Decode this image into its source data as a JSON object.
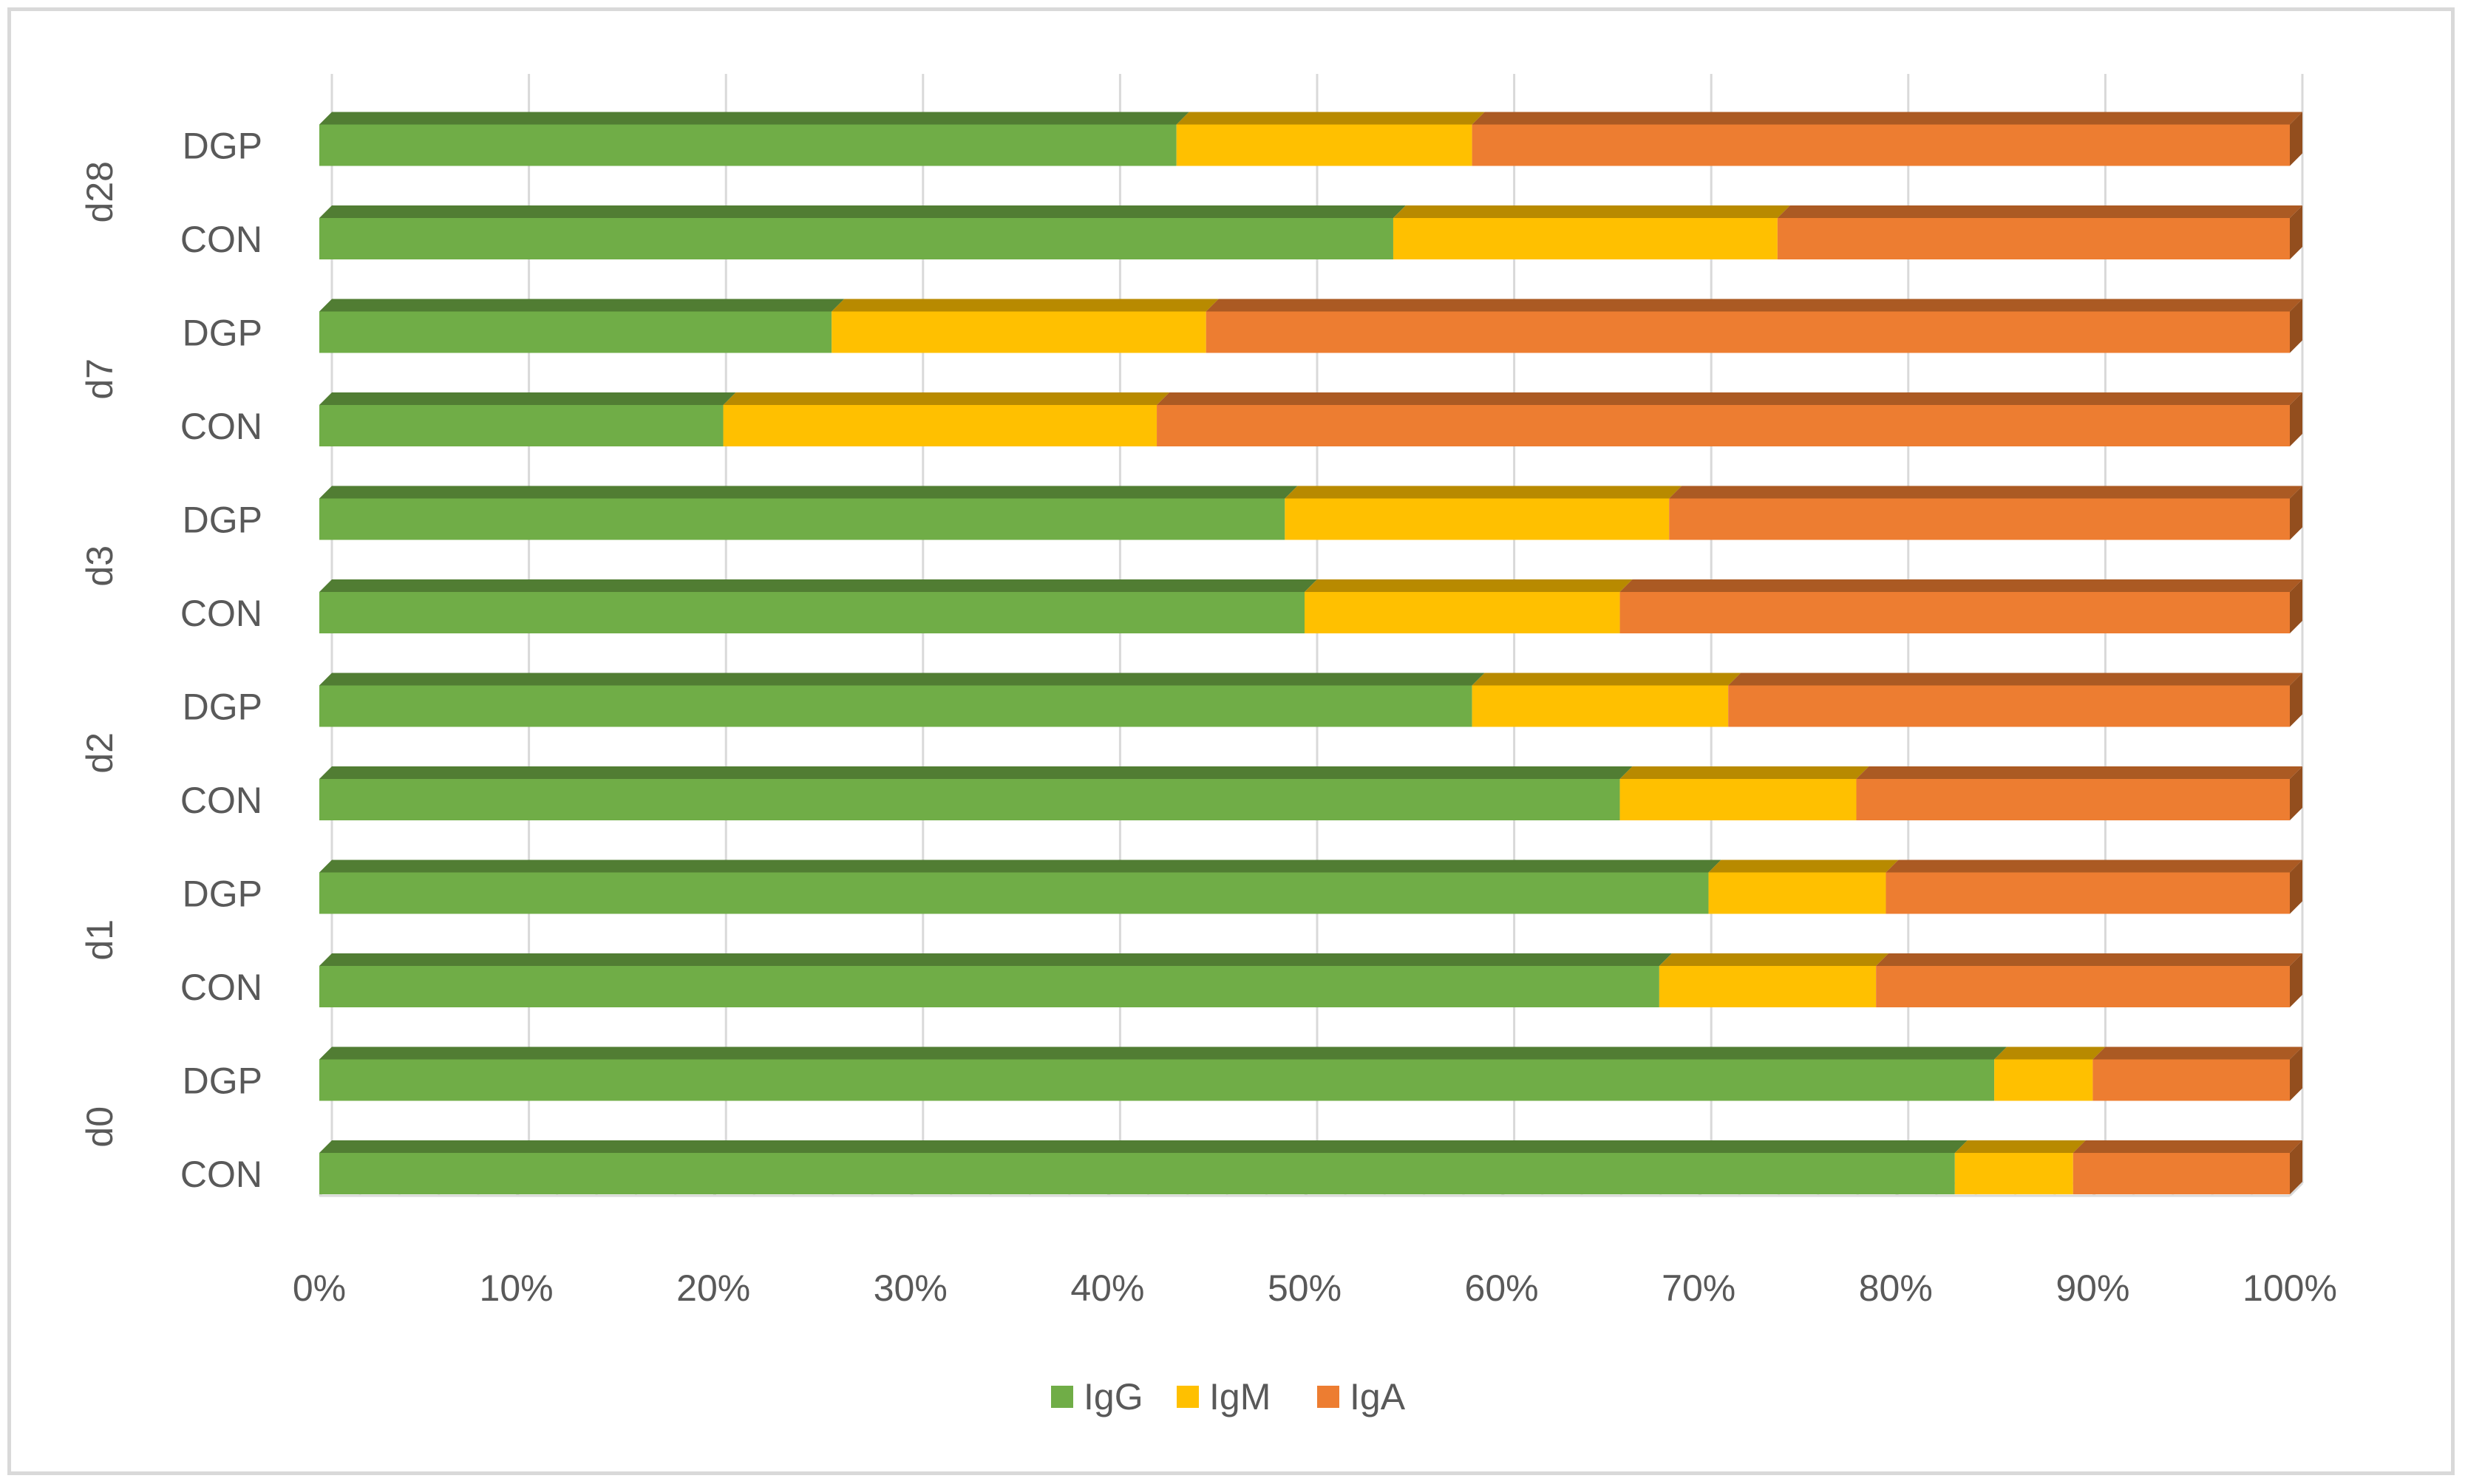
{
  "chart_data": {
    "type": "bar",
    "orientation": "horizontal",
    "stacked": "percent",
    "title": "",
    "xlabel": "",
    "ylabel": "",
    "xlim": [
      0,
      100
    ],
    "x_ticks": [
      "0%",
      "10%",
      "20%",
      "30%",
      "40%",
      "50%",
      "60%",
      "70%",
      "80%",
      "90%",
      "100%"
    ],
    "groups": [
      "d0",
      "d1",
      "d2",
      "d3",
      "d7",
      "d28"
    ],
    "categories": [
      "CON",
      "DGP",
      "CON",
      "DGP",
      "CON",
      "DGP",
      "CON",
      "DGP",
      "CON",
      "DGP",
      "CON",
      "DGP"
    ],
    "category_groups": [
      "d0",
      "d0",
      "d1",
      "d1",
      "d2",
      "d2",
      "d3",
      "d3",
      "d7",
      "d7",
      "d28",
      "d28"
    ],
    "series": [
      {
        "name": "IgG",
        "color": "#70ad47",
        "values": [
          83,
          85,
          68,
          70.5,
          66,
          58.5,
          50,
          49,
          20.5,
          26,
          54.5,
          43.5
        ]
      },
      {
        "name": "IgM",
        "color": "#ffc000",
        "values": [
          6,
          5,
          11,
          9,
          12,
          13,
          16,
          19.5,
          22,
          19,
          19.5,
          15
        ]
      },
      {
        "name": "IgA",
        "color": "#ed7d31",
        "values": [
          11,
          10,
          21,
          20.5,
          22,
          28.5,
          34,
          31.5,
          57.5,
          55,
          26,
          41.5
        ]
      }
    ],
    "legend_position": "bottom",
    "grid": true
  }
}
